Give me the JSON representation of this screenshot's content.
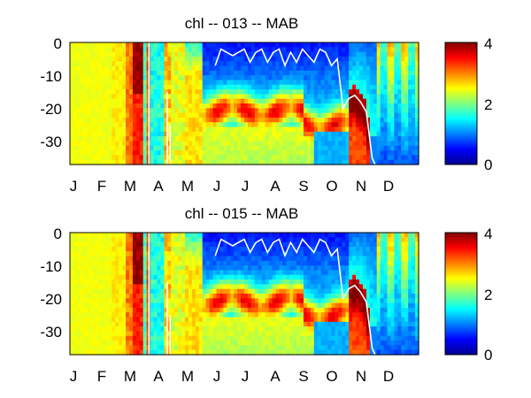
{
  "figure": {
    "background": "#ffffff",
    "line_color": "#ffffff",
    "colormap": "jet"
  },
  "chart_data": [
    {
      "type": "heatmap",
      "title": "chl -- 013 -- MAB",
      "x_tick_labels": [
        "J",
        "F",
        "M",
        "A",
        "M",
        "J",
        "J",
        "A",
        "S",
        "O",
        "N",
        "D"
      ],
      "y_tick_labels": [
        "0",
        "-10",
        "-20",
        "-30"
      ],
      "y_ticks": [
        0,
        -10,
        -20,
        -30
      ],
      "ylim": [
        -37,
        0
      ],
      "xlim": [
        0,
        12
      ],
      "colorbar": {
        "ticks": [
          0,
          2,
          4
        ],
        "tick_labels": [
          "0",
          "2",
          "4"
        ],
        "range": [
          0,
          4
        ]
      },
      "mixed_layer_depth": {
        "x": [
          5.0,
          5.2,
          5.4,
          5.6,
          5.8,
          6.0,
          6.2,
          6.4,
          6.6,
          6.8,
          7.0,
          7.2,
          7.4,
          7.6,
          7.8,
          8.0,
          8.2,
          8.4,
          8.6,
          8.8,
          9.0,
          9.2,
          9.4,
          9.6,
          9.8,
          10.0,
          10.2,
          10.4,
          10.5
        ],
        "y": [
          -7,
          -2,
          -3,
          -4,
          -3,
          -2,
          -6,
          -3,
          -2,
          -6,
          -3,
          -2,
          -7,
          -3,
          -6,
          -2,
          -4,
          -6,
          -2,
          -3,
          -7,
          -5,
          -20,
          -17,
          -16,
          -18,
          -21,
          -35,
          -37
        ]
      }
    },
    {
      "type": "heatmap",
      "title": "chl -- 015 -- MAB",
      "x_tick_labels": [
        "J",
        "F",
        "M",
        "A",
        "M",
        "J",
        "J",
        "A",
        "S",
        "O",
        "N",
        "D"
      ],
      "y_tick_labels": [
        "0",
        "-10",
        "-20",
        "-30"
      ],
      "y_ticks": [
        0,
        -10,
        -20,
        -30
      ],
      "ylim": [
        -37,
        0
      ],
      "xlim": [
        0,
        12
      ],
      "colorbar": {
        "ticks": [
          0,
          2,
          4
        ],
        "tick_labels": [
          "0",
          "2",
          "4"
        ],
        "range": [
          0,
          4
        ]
      },
      "mixed_layer_depth": {
        "x": [
          5.0,
          5.2,
          5.4,
          5.6,
          5.8,
          6.0,
          6.2,
          6.4,
          6.6,
          6.8,
          7.0,
          7.2,
          7.4,
          7.6,
          7.8,
          8.0,
          8.2,
          8.4,
          8.6,
          8.8,
          9.0,
          9.2,
          9.4,
          9.6,
          9.8,
          10.0,
          10.2,
          10.4,
          10.5
        ],
        "y": [
          -7,
          -2,
          -3,
          -4,
          -3,
          -2,
          -6,
          -3,
          -2,
          -6,
          -3,
          -2,
          -7,
          -3,
          -6,
          -2,
          -4,
          -6,
          -2,
          -3,
          -7,
          -5,
          -20,
          -17,
          -16,
          -18,
          -21,
          -35,
          -37
        ]
      }
    }
  ]
}
